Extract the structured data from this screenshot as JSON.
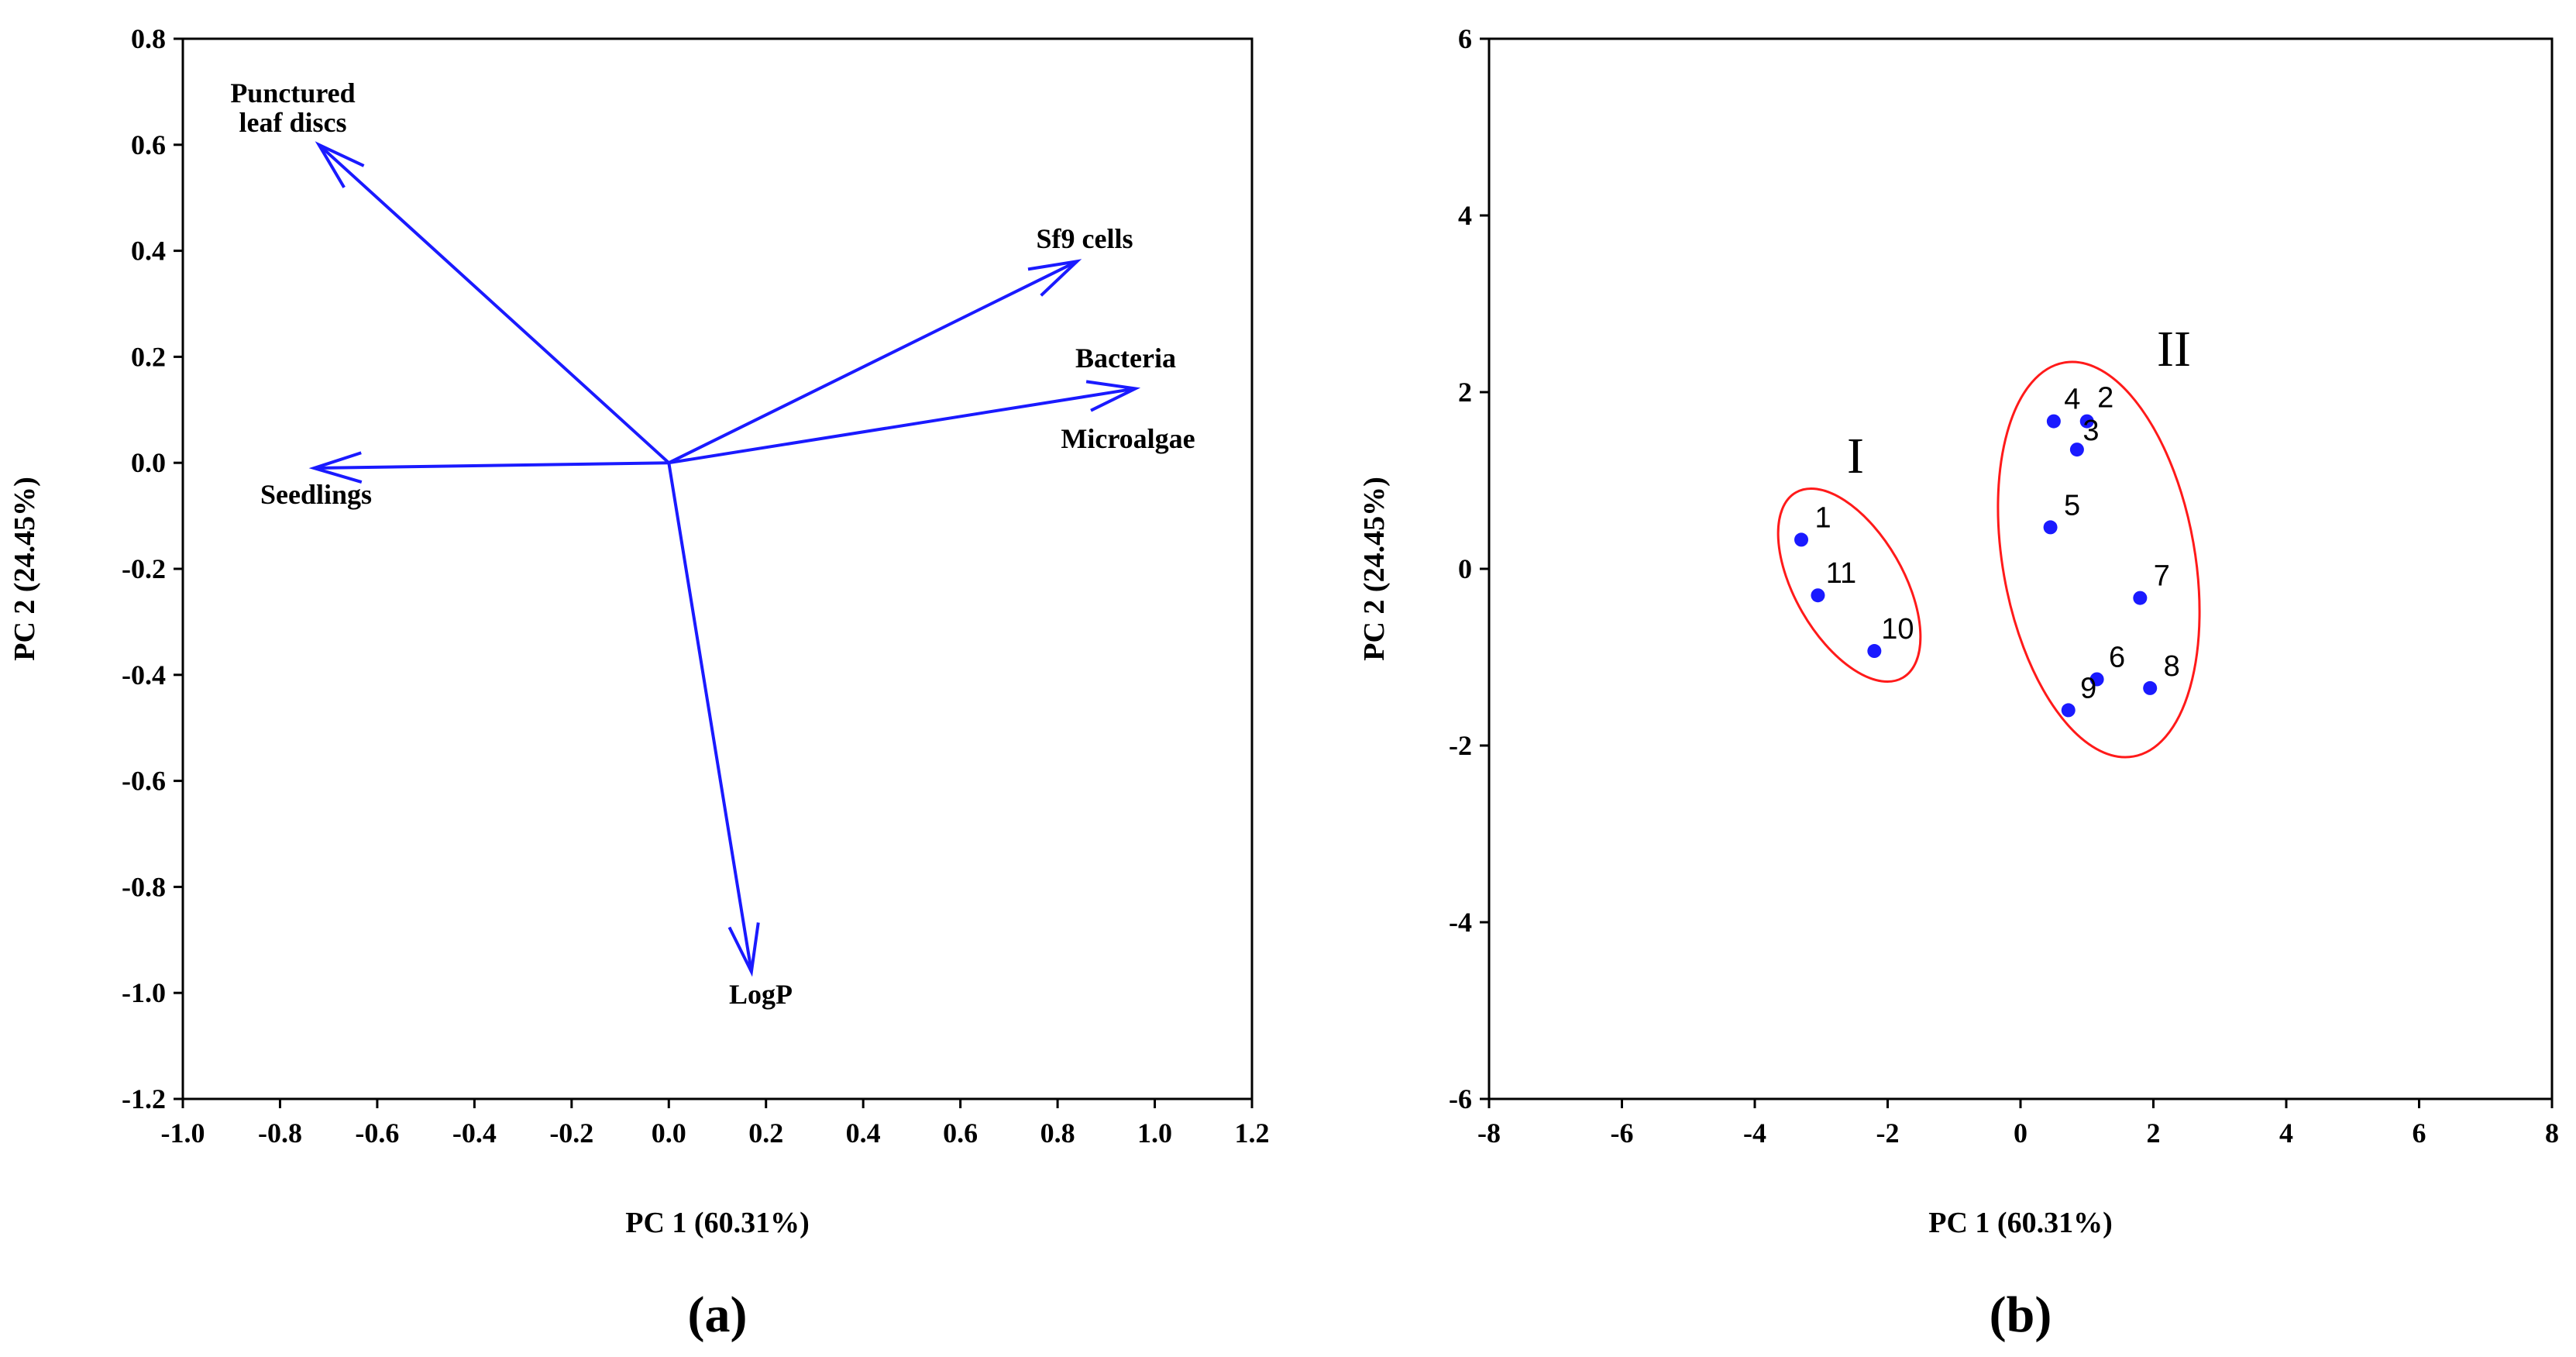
{
  "chart_data": [
    {
      "type": "biplot",
      "panel_label": "(a)",
      "xlabel": "PC 1 (60.31%)",
      "ylabel": "PC 2 (24.45%)",
      "xlim": [
        -1.0,
        1.2
      ],
      "ylim": [
        -1.2,
        0.8
      ],
      "xticks": [
        "-1.0",
        "-0.8",
        "-0.6",
        "-0.4",
        "-0.2",
        "0.0",
        "0.2",
        "0.4",
        "0.6",
        "0.8",
        "1.0",
        "1.2"
      ],
      "yticks": [
        "0.8",
        "0.6",
        "0.4",
        "0.2",
        "0.0",
        "-0.2",
        "-0.4",
        "-0.6",
        "-0.8",
        "-1.0",
        "-1.2"
      ],
      "vectors": [
        {
          "name": "Punctured leaf discs",
          "lines": [
            "Punctured",
            "leaf discs"
          ],
          "x": -0.72,
          "y": 0.6
        },
        {
          "name": "Sf9 cells",
          "lines": [
            "Sf9 cells"
          ],
          "x": 0.84,
          "y": 0.38
        },
        {
          "name": "Bacteria",
          "lines": [
            "Bacteria"
          ],
          "x": 0.96,
          "y": 0.14
        },
        {
          "name": "Microalgae",
          "lines": [
            "Microalgae"
          ],
          "x": 0.96,
          "y": 0.14
        },
        {
          "name": "Seedlings",
          "lines": [
            "Seedlings"
          ],
          "x": -0.73,
          "y": -0.01
        },
        {
          "name": "LogP",
          "lines": [
            "LogP"
          ],
          "x": 0.17,
          "y": -0.96
        }
      ]
    },
    {
      "type": "scatter",
      "panel_label": "(b)",
      "xlabel": "PC 1 (60.31%)",
      "ylabel": "PC 2 (24.45%)",
      "xlim": [
        -8,
        8
      ],
      "ylim": [
        -6,
        6
      ],
      "xticks": [
        "-8",
        "-6",
        "-4",
        "-2",
        "0",
        "2",
        "4",
        "6",
        "8"
      ],
      "yticks": [
        "6",
        "4",
        "2",
        "0",
        "-2",
        "-4",
        "-6"
      ],
      "points": [
        {
          "label": "1",
          "x": -3.3,
          "y": 0.33
        },
        {
          "label": "2",
          "x": 1.0,
          "y": 1.67
        },
        {
          "label": "3",
          "x": 0.85,
          "y": 1.35
        },
        {
          "label": "4",
          "x": 0.5,
          "y": 1.67
        },
        {
          "label": "5",
          "x": 0.45,
          "y": 0.47
        },
        {
          "label": "6",
          "x": 1.15,
          "y": -1.25
        },
        {
          "label": "7",
          "x": 1.8,
          "y": -0.33
        },
        {
          "label": "8",
          "x": 1.95,
          "y": -1.35
        },
        {
          "label": "9",
          "x": 0.72,
          "y": -1.6
        },
        {
          "label": "10",
          "x": -2.2,
          "y": -0.93
        },
        {
          "label": "11",
          "x": -3.05,
          "y": -0.3
        }
      ],
      "groups": [
        {
          "name": "I",
          "members": [
            "1",
            "11",
            "10"
          ]
        },
        {
          "name": "II",
          "members": [
            "2",
            "3",
            "4",
            "5",
            "6",
            "7",
            "8",
            "9"
          ]
        }
      ]
    }
  ],
  "colors": {
    "vector": "#1a1aff",
    "point": "#1a1aff",
    "ellipse": "#ff1a1a",
    "axis": "#000000"
  }
}
